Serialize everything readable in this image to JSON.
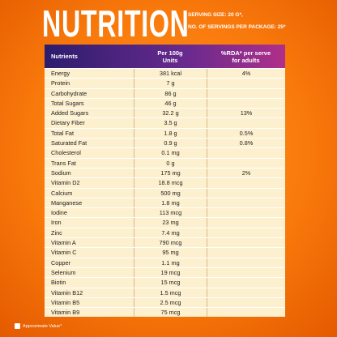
{
  "header": {
    "title": "NUTRITION",
    "serving_size": "SERVING SIZE: 20 G*,",
    "servings": "NO. OF SERVINGS PER PACKAGE: 25*"
  },
  "table": {
    "columns": [
      "Nutrients",
      "Per 100g\nUnits",
      "%RDA* per serve\nfor adults"
    ],
    "rows": [
      [
        "Energy",
        "381 kcal",
        "4%"
      ],
      [
        "Protein",
        "7 g"
      ],
      [
        "Carbohydrate",
        "86 g"
      ],
      [
        "Total Sugars",
        "46 g"
      ],
      [
        "Added Sugars",
        "32.2 g",
        "13%"
      ],
      [
        "Dietary Fiber",
        "3.5 g"
      ],
      [
        "Total Fat",
        "1.8 g",
        "0.5%"
      ],
      [
        "Saturated Fat",
        "0.9 g",
        "0.8%"
      ],
      [
        "Cholesterol",
        "0.1 mg"
      ],
      [
        "Trans Fat",
        "0 g"
      ],
      [
        "Sodium",
        "175 mg",
        "2%"
      ],
      [
        "Vitamin D2",
        "18.8 mcg"
      ],
      [
        "Calcium",
        "500 mg"
      ],
      [
        "Manganese",
        "1.8 mg"
      ],
      [
        "Iodine",
        "113 mcg"
      ],
      [
        "Iron",
        "23 mg"
      ],
      [
        "Zinc",
        "7.4 mg"
      ],
      [
        "Vitamin A",
        "790 mcg"
      ],
      [
        "Vitamin C",
        "95 mg"
      ],
      [
        "Copper",
        "1.1 mg"
      ],
      [
        "Selenium",
        "19 mcg"
      ],
      [
        "Biotin",
        "15 mcg"
      ],
      [
        "Vitamin B12",
        "1.5 mcg"
      ],
      [
        "Vitamin B5",
        "2.5 mcg"
      ],
      [
        "Vitamin B9",
        "75 mcg"
      ]
    ]
  },
  "footnote": "Approximate Value*"
}
